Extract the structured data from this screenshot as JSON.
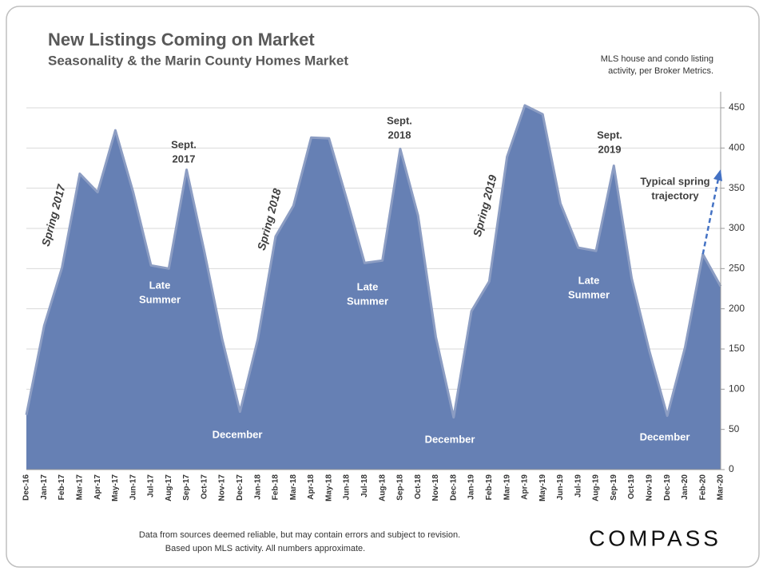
{
  "chart_data": {
    "type": "area",
    "title": "New Listings Coming on Market",
    "subtitle": "Seasonality & the Marin County Homes Market",
    "note": [
      "MLS house and condo listing",
      "activity, per Broker Metrics."
    ],
    "footer": [
      "Data from sources deemed reliable, but may contain errors and subject to revision.",
      "Based upon MLS activity.  All numbers approximate."
    ],
    "logo": "COMPASS",
    "categories": [
      "Dec-16",
      "Jan-17",
      "Feb-17",
      "Mar-17",
      "Apr-17",
      "May-17",
      "Jun-17",
      "Jul-17",
      "Aug-17",
      "Sep-17",
      "Oct-17",
      "Nov-17",
      "Dec-17",
      "Jan-18",
      "Feb-18",
      "Mar-18",
      "Apr-18",
      "May-18",
      "Jun-18",
      "Jul-18",
      "Aug-18",
      "Sep-18",
      "Oct-18",
      "Nov-18",
      "Dec-18",
      "Jan-19",
      "Feb-19",
      "Mar-19",
      "Apr-19",
      "May-19",
      "Jun-19",
      "Jul-19",
      "Aug-19",
      "Sep-19",
      "Oct-19",
      "Nov-19",
      "Dec-19",
      "Jan-20",
      "Feb-20",
      "Mar-20"
    ],
    "values": [
      68,
      179,
      251,
      368,
      345,
      422,
      345,
      254,
      250,
      373,
      271,
      162,
      72,
      162,
      290,
      328,
      413,
      412,
      336,
      257,
      260,
      399,
      316,
      165,
      65,
      197,
      234,
      389,
      453,
      442,
      331,
      276,
      272,
      378,
      238,
      147,
      67,
      152,
      268,
      228
    ],
    "color": "#6680b4",
    "line_color": "#8c9dc3",
    "ylim": [
      0,
      470
    ],
    "yticks": [
      0,
      50,
      100,
      150,
      200,
      250,
      300,
      350,
      400,
      450
    ],
    "grid": true,
    "annotations": [
      [
        "Spring 2017"
      ],
      [
        "Sept.",
        "2017"
      ],
      [
        "Late",
        "Summer"
      ],
      [
        "December"
      ],
      [
        "Spring 2018"
      ],
      [
        "Sept.",
        "2018"
      ],
      [
        "Late",
        "Summer"
      ],
      [
        "December"
      ],
      [
        "Spring 2019"
      ],
      [
        "Sept.",
        "2019"
      ],
      [
        "Late",
        "Summer"
      ],
      [
        "December"
      ],
      [
        "Typical spring",
        "trajectory"
      ]
    ]
  }
}
